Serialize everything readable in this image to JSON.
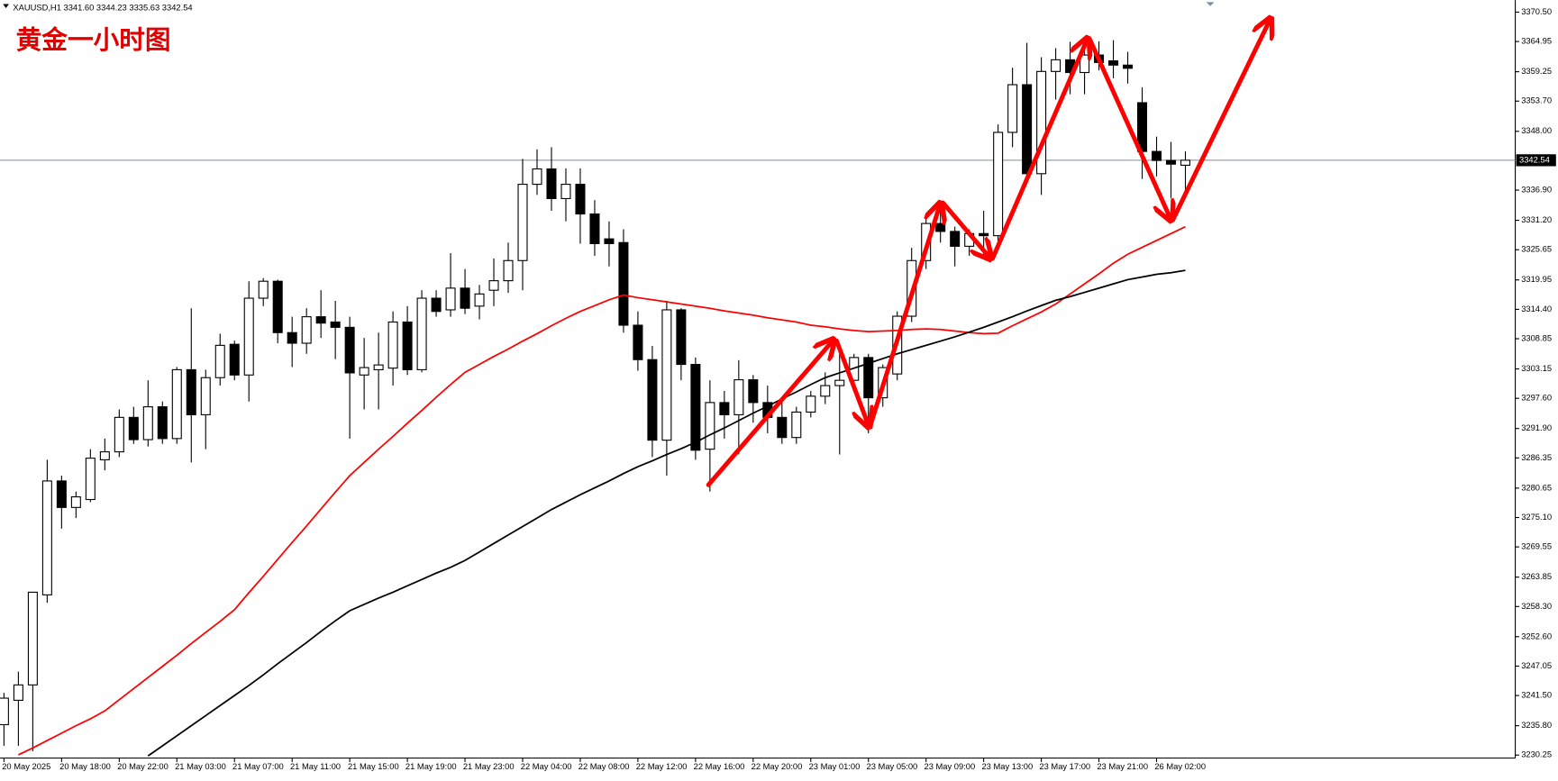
{
  "chart_data": {
    "type": "candlestick",
    "header": "XAUUSD,H1  3341.60 3344.23 3335.63 3342.54",
    "title": "黄金一小时图",
    "categories": [
      "20 May 2025",
      null,
      null,
      null,
      "20 May 18:00",
      null,
      null,
      null,
      "20 May 22:00",
      null,
      null,
      null,
      "21 May 03:00",
      null,
      null,
      null,
      "21 May 07:00",
      null,
      null,
      null,
      "21 May 11:00",
      null,
      null,
      null,
      "21 May 15:00",
      null,
      null,
      null,
      "21 May 19:00",
      null,
      null,
      null,
      "21 May 23:00",
      null,
      null,
      null,
      "22 May 04:00",
      null,
      null,
      null,
      "22 May 08:00",
      null,
      null,
      null,
      "22 May 12:00",
      null,
      null,
      null,
      "22 May 16:00",
      null,
      null,
      null,
      "22 May 20:00",
      null,
      null,
      null,
      "23 May 01:00",
      null,
      null,
      null,
      "23 May 05:00",
      null,
      null,
      null,
      "23 May 09:00",
      null,
      null,
      null,
      "23 May 13:00",
      null,
      null,
      null,
      "23 May 17:00",
      null,
      null,
      null,
      "23 May 21:00",
      null,
      null,
      null,
      "26 May 02:00",
      null,
      null
    ],
    "open": [
      3236,
      3240.6,
      3243.5,
      3260.5,
      3282,
      3277,
      3278.5,
      3286,
      3287.5,
      3294,
      3289.8,
      3296,
      3290,
      3303,
      3294.5,
      3301.5,
      3307.8,
      3302,
      3316.5,
      3319.7,
      3310,
      3308,
      3313,
      3312,
      3311,
      3302,
      3303,
      3303.3,
      3312,
      3303,
      3316.5,
      3314.3,
      3318.4,
      3315,
      3318,
      3319.8,
      3323.6,
      3338,
      3340.9,
      3335.3,
      3338,
      3332.4,
      3327.7,
      3327,
      3311.4,
      3304.9,
      3289.7,
      3314.3,
      3304,
      3288,
      3296.8,
      3294.5,
      3301.1,
      3296.8,
      3294,
      3290.2,
      3295,
      3298,
      3300,
      3301,
      3305.3,
      3297.7,
      3302.2,
      3313.1,
      3323.6,
      3330.6,
      3329.1,
      3326.3,
      3328.7,
      3328.3,
      3347.8,
      3356.8,
      3340,
      3359.3,
      3361.5,
      3359.1,
      3362.4,
      3361.3,
      3360.5,
      3353.4,
      3344.2,
      3342.5,
      3341.6
    ],
    "high": [
      3242,
      3246,
      3261,
      3286,
      3283,
      3280,
      3288,
      3290,
      3295.5,
      3296,
      3301,
      3297,
      3303.5,
      3314.6,
      3303,
      3309.8,
      3308.5,
      3319.7,
      3320.3,
      3320,
      3313,
      3314.6,
      3318,
      3316,
      3313,
      3309,
      3310,
      3314,
      3315,
      3318,
      3318,
      3325,
      3322,
      3319,
      3324,
      3327,
      3342.8,
      3344.6,
      3345,
      3341,
      3341,
      3335,
      3331,
      3329.5,
      3314,
      3307.5,
      3316,
      3314.6,
      3305.3,
      3301,
      3299,
      3304.8,
      3302,
      3300,
      3297,
      3296,
      3299,
      3302.5,
      3307,
      3306,
      3306,
      3304,
      3314,
      3326,
      3331.5,
      3334,
      3330,
      3329.5,
      3333,
      3349.3,
      3360,
      3364.7,
      3362,
      3363.7,
      3364.9,
      3365.5,
      3365,
      3365.2,
      3363,
      3356.3,
      3347,
      3346,
      3344.23
    ],
    "low": [
      3232,
      3232,
      3231,
      3259,
      3273,
      3275,
      3278,
      3284,
      3286.5,
      3289,
      3288.5,
      3289,
      3289,
      3285.5,
      3288,
      3300,
      3301,
      3297,
      3315,
      3308,
      3303.5,
      3306,
      3309,
      3305,
      3290,
      3295.5,
      3295.5,
      3300,
      3302,
      3302.5,
      3313,
      3313,
      3313.5,
      3312.5,
      3315,
      3317.5,
      3318,
      3336,
      3333,
      3331,
      3326.8,
      3324.5,
      3322.5,
      3310,
      3302.8,
      3286.5,
      3283,
      3301,
      3286,
      3280,
      3290,
      3287,
      3293,
      3291,
      3289,
      3289,
      3294,
      3296.5,
      3287,
      3299,
      3291,
      3296,
      3301,
      3312,
      3322,
      3327,
      3322.5,
      3324.5,
      3324,
      3326,
      3345,
      3339,
      3336,
      3354,
      3355,
      3355,
      3359.5,
      3358,
      3357,
      3339,
      3339.5,
      3335.4,
      3335.63
    ],
    "close": [
      3241,
      3243.5,
      3261,
      3282,
      3277,
      3279,
      3286.3,
      3287.5,
      3294,
      3289.8,
      3296,
      3290,
      3303,
      3294.5,
      3301.5,
      3307.6,
      3302,
      3316.5,
      3319.7,
      3310,
      3308,
      3313,
      3311.8,
      3311,
      3302.4,
      3303.4,
      3303.9,
      3312,
      3303,
      3316.5,
      3314,
      3318.4,
      3314.6,
      3317.3,
      3319.8,
      3323.6,
      3338,
      3340.9,
      3335.3,
      3338,
      3332.4,
      3326.8,
      3326.8,
      3311.4,
      3304.9,
      3289.7,
      3314.3,
      3304,
      3287.8,
      3296.8,
      3294.5,
      3301.1,
      3296.8,
      3294,
      3290.2,
      3295,
      3298,
      3300,
      3301,
      3305.3,
      3297.7,
      3303.4,
      3313.1,
      3323.6,
      3330.6,
      3329.1,
      3326.3,
      3328.7,
      3328.3,
      3347.8,
      3356.8,
      3340,
      3359.3,
      3361.5,
      3359.1,
      3362.4,
      3361,
      3360.5,
      3359.9,
      3344.2,
      3342.5,
      3341.8,
      3342.54
    ],
    "series": [
      {
        "color": "#ff0000",
        "values": [
          null,
          3230.3,
          3231.6,
          3233,
          3234.4,
          3235.8,
          3237.1,
          3238.6,
          3240.7,
          3242.8,
          3244.9,
          3247,
          3249.1,
          3251.3,
          3253.4,
          3255.5,
          3257.7,
          3260.9,
          3264,
          3267.2,
          3270.4,
          3273.5,
          3276.7,
          3279.9,
          3283,
          3285.5,
          3288,
          3290.4,
          3292.9,
          3295.3,
          3297.8,
          3300.2,
          3302.5,
          3304,
          3305.5,
          3306.9,
          3308.4,
          3309.8,
          3311.3,
          3312.7,
          3314,
          3315.1,
          3316.2,
          3317.1,
          3316.6,
          3316.2,
          3315.8,
          3315.4,
          3315,
          3314.6,
          3314.1,
          3313.7,
          3313.3,
          3312.8,
          3312.4,
          3312,
          3311.4,
          3311.1,
          3310.7,
          3310.4,
          3310.2,
          3310.3,
          3310.4,
          3310.6,
          3310.7,
          3310.6,
          3310.3,
          3310,
          3309.8,
          3309.9,
          3311.3,
          3312.6,
          3313.9,
          3315.4,
          3317.3,
          3319.2,
          3321.1,
          3323.1,
          3324.8,
          3326.1,
          3327.4,
          3328.7,
          3330
        ]
      },
      {
        "color": "#000000",
        "values": [
          null,
          null,
          null,
          null,
          null,
          null,
          null,
          null,
          null,
          null,
          3230.1,
          3232,
          3233.9,
          3235.8,
          3237.7,
          3239.6,
          3241.5,
          3243.4,
          3245.4,
          3247.5,
          3249.5,
          3251.5,
          3253.6,
          3255.6,
          3257.5,
          3258.7,
          3259.9,
          3261,
          3262.2,
          3263.4,
          3264.6,
          3265.7,
          3267,
          3268.6,
          3270.2,
          3271.8,
          3273.4,
          3275,
          3276.6,
          3278,
          3279.4,
          3280.7,
          3282,
          3283.4,
          3284.7,
          3285.8,
          3287,
          3288.1,
          3289.3,
          3290.7,
          3292,
          3293.4,
          3294.8,
          3296.1,
          3297.5,
          3298.8,
          3300.2,
          3301.5,
          3302.4,
          3303.3,
          3304.2,
          3305.1,
          3306,
          3306.8,
          3307.6,
          3308.4,
          3309.2,
          3310.1,
          3311,
          3312,
          3313,
          3314.1,
          3315.1,
          3316.1,
          3316.8,
          3317.6,
          3318.4,
          3319.2,
          3320,
          3320.5,
          3321,
          3321.3,
          3321.75
        ]
      }
    ],
    "current_price": 3342.54,
    "ylim": [
      3229.7,
      3372.2
    ],
    "yticks": [
      {
        "value": 3370.5,
        "label": "3370.50"
      },
      3364.95,
      3359.25,
      {
        "value": 3353.7,
        "label": "3353.70"
      },
      {
        "value": 3348,
        "label": "3348.00"
      },
      {
        "value": 3336.9,
        "label": "3336.90"
      },
      {
        "value": 3331.2,
        "label": "3331.20"
      },
      3325.65,
      3319.95,
      {
        "value": 3314.4,
        "label": "3314.40"
      },
      3308.85,
      3303.15,
      {
        "value": 3297.6,
        "label": "3297.60"
      },
      {
        "value": 3291.9,
        "label": "3291.90"
      },
      3286.35,
      3280.65,
      {
        "value": 3275.1,
        "label": "3275.10"
      },
      3269.55,
      3263.85,
      {
        "value": 3258.3,
        "label": "3258.30"
      },
      {
        "value": 3252.6,
        "label": "3252.60"
      },
      3247.05,
      {
        "value": 3241.5,
        "label": "3241.50"
      },
      {
        "value": 3235.8,
        "label": "3235.80"
      },
      3230.25
    ],
    "grid": false,
    "up_color": "#ffffff",
    "down_color": "#000000"
  }
}
